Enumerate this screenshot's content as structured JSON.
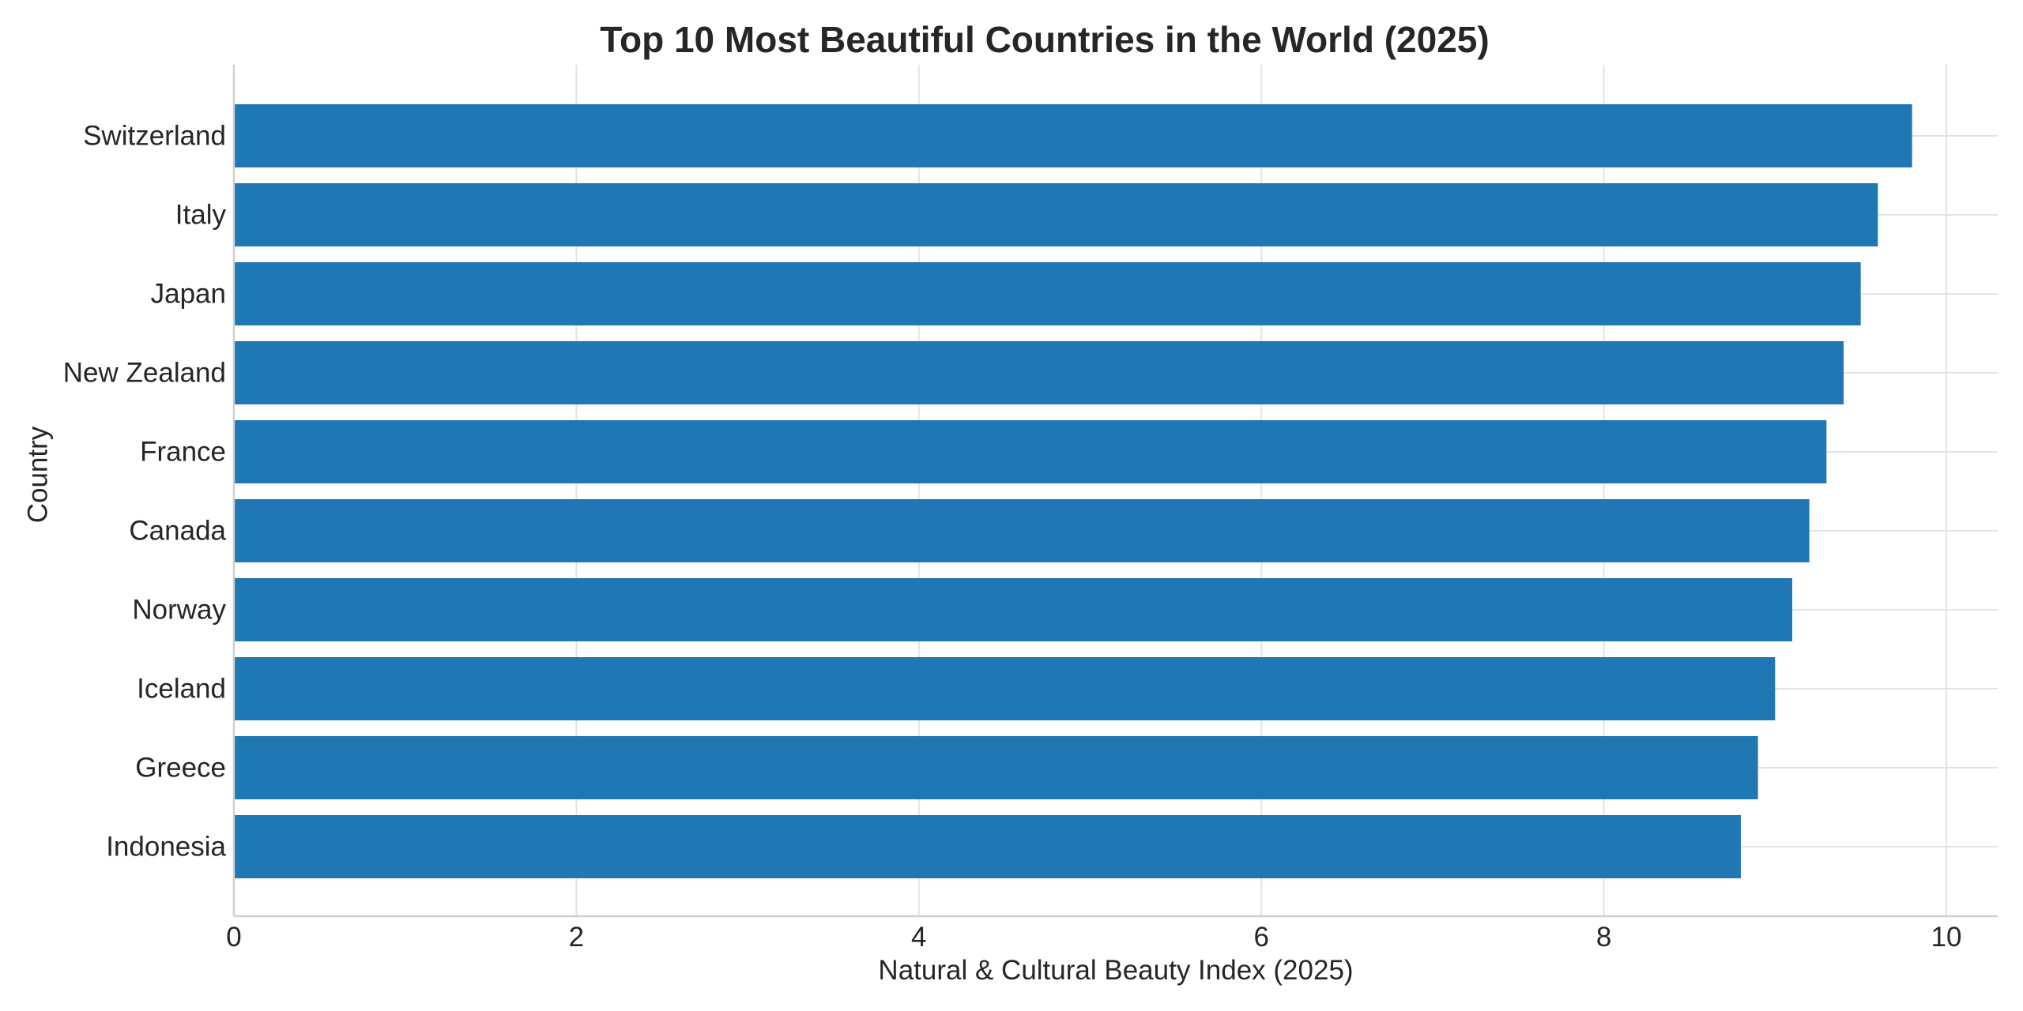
{
  "chart_data": {
    "type": "bar",
    "orientation": "horizontal",
    "title": "Top 10 Most Beautiful Countries in the World (2025)",
    "xlabel": "Natural & Cultural Beauty Index (2025)",
    "ylabel": "Country",
    "categories": [
      "Switzerland",
      "Italy",
      "Japan",
      "New Zealand",
      "France",
      "Canada",
      "Norway",
      "Iceland",
      "Greece",
      "Indonesia"
    ],
    "values": [
      9.8,
      9.6,
      9.5,
      9.4,
      9.3,
      9.2,
      9.1,
      9.0,
      8.9,
      8.8
    ],
    "xlim": [
      0,
      10.3
    ],
    "xticks": [
      0,
      2,
      4,
      6,
      8,
      10
    ],
    "xtick_labels": [
      "0",
      "2",
      "4",
      "6",
      "8",
      "10"
    ],
    "grid": true,
    "bar_color": "#1f77b4"
  }
}
